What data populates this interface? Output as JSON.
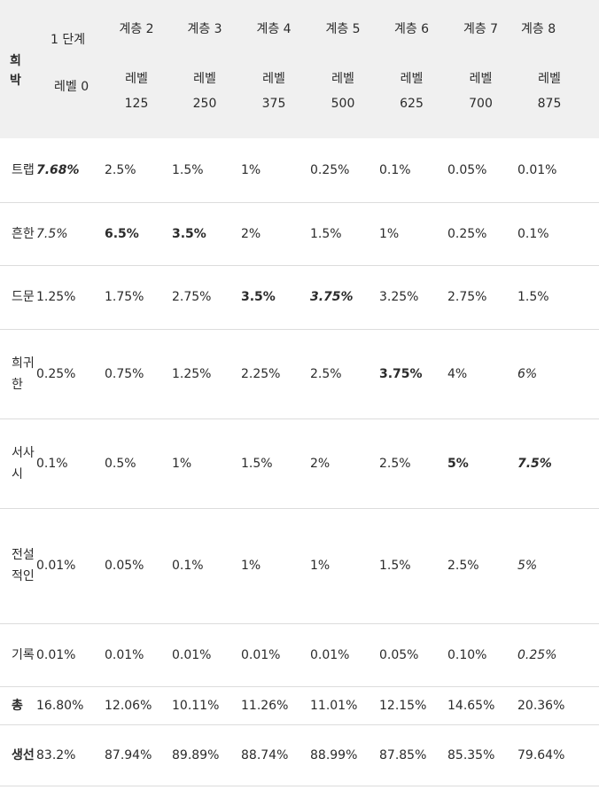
{
  "header": {
    "rarity": "희박",
    "columns": [
      {
        "top": "1 단계",
        "bottom": "레벨 0"
      },
      {
        "top": "계층 2",
        "bottom": "레벨 125"
      },
      {
        "top": "계층 3",
        "bottom": "레벨 250"
      },
      {
        "top": "계층 4",
        "bottom": "레벨 375"
      },
      {
        "top": "계층 5",
        "bottom": "레벨 500"
      },
      {
        "top": "계층 6",
        "bottom": "레벨 625"
      },
      {
        "top": "계층 7",
        "bottom": "레벨 700"
      },
      {
        "top": "계층 8",
        "bottom": "레벨 875"
      }
    ]
  },
  "rows": [
    {
      "label": "트랩",
      "cells": [
        "7.68%",
        "2.5%",
        "1.5%",
        "1%",
        "0.25%",
        "0.1%",
        "0.05%",
        "0.01%"
      ]
    },
    {
      "label": "흔한",
      "cells": [
        "7.5%",
        "6.5%",
        "3.5%",
        "2%",
        "1.5%",
        "1%",
        "0.25%",
        "0.1%"
      ]
    },
    {
      "label": "드문",
      "cells": [
        "1.25%",
        "1.75%",
        "2.75%",
        "3.5%",
        "3.75%",
        "3.25%",
        "2.75%",
        "1.5%"
      ]
    },
    {
      "label": "희귀한",
      "cells": [
        "0.25%",
        "0.75%",
        "1.25%",
        "2.25%",
        "2.5%",
        "3.75%",
        "4%",
        "6%"
      ]
    },
    {
      "label": "서사시",
      "cells": [
        "0.1%",
        "0.5%",
        "1%",
        "1.5%",
        "2%",
        "2.5%",
        "5%",
        "7.5%"
      ]
    },
    {
      "label": "전설적인",
      "cells": [
        "0.01%",
        "0.05%",
        "0.1%",
        "1%",
        "1%",
        "1.5%",
        "2.5%",
        "5%"
      ]
    },
    {
      "label": "기록",
      "cells": [
        "0.01%",
        "0.01%",
        "0.01%",
        "0.01%",
        "0.01%",
        "0.05%",
        "0.10%",
        "0.25%"
      ]
    },
    {
      "label": "총",
      "cells": [
        "16.80%",
        "12.06%",
        "10.11%",
        "11.26%",
        "11.01%",
        "12.15%",
        "14.65%",
        "20.36%"
      ]
    },
    {
      "label": "생선",
      "cells": [
        "83.2%",
        "87.94%",
        "89.89%",
        "88.74%",
        "88.99%",
        "87.85%",
        "85.35%",
        "79.64%"
      ]
    }
  ]
}
